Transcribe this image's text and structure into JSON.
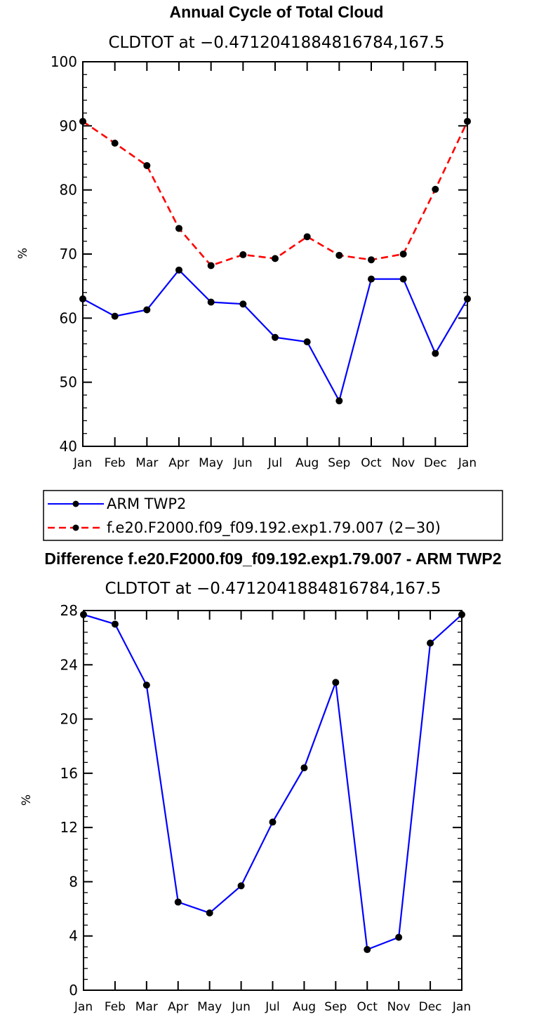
{
  "chart_data": [
    {
      "type": "line",
      "title": "Annual Cycle of Total Cloud",
      "subtitle": "CLDTOT at −0.4712041884816784,167.5",
      "ylabel": "%",
      "xlabel": "",
      "categories": [
        "Jan",
        "Feb",
        "Mar",
        "Apr",
        "May",
        "Jun",
        "Jul",
        "Aug",
        "Sep",
        "Oct",
        "Nov",
        "Dec",
        "Jan"
      ],
      "ylim": [
        40,
        100
      ],
      "yticks": [
        40,
        50,
        60,
        70,
        80,
        90,
        100
      ],
      "series": [
        {
          "name": "ARM TWP2",
          "color": "#0000ff",
          "dash": "solid",
          "values": [
            63.0,
            60.3,
            61.3,
            67.5,
            62.5,
            62.2,
            57.0,
            56.3,
            47.1,
            66.1,
            66.1,
            54.5,
            63.0
          ]
        },
        {
          "name": "f.e20.F2000.f09_f09.192.exp1.79.007 (2−30)",
          "color": "#ff0000",
          "dash": "dashed",
          "values": [
            90.7,
            87.3,
            83.8,
            74.0,
            68.2,
            69.9,
            69.3,
            72.7,
            69.8,
            69.1,
            70.0,
            80.1,
            90.7
          ]
        }
      ],
      "legend_position": "below"
    },
    {
      "type": "line",
      "title": "Difference f.e20.F2000.f09_f09.192.exp1.79.007 - ARM TWP2",
      "subtitle": "CLDTOT at −0.4712041884816784,167.5",
      "ylabel": "%",
      "xlabel": "",
      "categories": [
        "Jan",
        "Feb",
        "Mar",
        "Apr",
        "May",
        "Jun",
        "Jul",
        "Aug",
        "Sep",
        "Oct",
        "Nov",
        "Dec",
        "Jan"
      ],
      "ylim": [
        0,
        28
      ],
      "yticks": [
        0,
        4,
        8,
        12,
        16,
        20,
        24,
        28
      ],
      "series": [
        {
          "name": "Difference",
          "color": "#0000ff",
          "dash": "solid",
          "values": [
            27.7,
            27.0,
            22.5,
            6.5,
            5.7,
            7.7,
            12.4,
            16.4,
            22.7,
            3.0,
            3.9,
            25.6,
            27.7
          ]
        }
      ]
    }
  ]
}
